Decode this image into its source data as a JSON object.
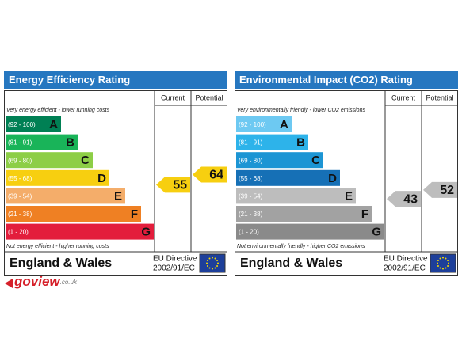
{
  "panels": [
    {
      "title": "Energy Efficiency Rating",
      "column_headers": [
        "Current",
        "Potential"
      ],
      "top_note": "Very energy efficient - lower running costs",
      "bottom_note": "Not energy efficient - higher running costs",
      "bands": [
        {
          "range": "(92 - 100)",
          "letter": "A",
          "color": "#008054"
        },
        {
          "range": "(81 - 91)",
          "letter": "B",
          "color": "#19b459"
        },
        {
          "range": "(69 - 80)",
          "letter": "C",
          "color": "#8dce46"
        },
        {
          "range": "(55 - 68)",
          "letter": "D",
          "color": "#f7cf10"
        },
        {
          "range": "(39 - 54)",
          "letter": "E",
          "color": "#f4ad6a"
        },
        {
          "range": "(21 - 38)",
          "letter": "F",
          "color": "#ef8023"
        },
        {
          "range": "(1 - 20)",
          "letter": "G",
          "color": "#e31d3c"
        }
      ],
      "current": 55,
      "potential": 64,
      "region": "England & Wales",
      "directive": [
        "EU Directive",
        "2002/91/EC"
      ]
    },
    {
      "title": "Environmental Impact (CO2) Rating",
      "column_headers": [
        "Current",
        "Potential"
      ],
      "top_note": "Very environmentally friendly - lower CO2 emissions",
      "bottom_note": "Not environmentally friendly - higher CO2 emissions",
      "bands": [
        {
          "range": "(92 - 100)",
          "letter": "A",
          "color": "#6dc9f2"
        },
        {
          "range": "(81 - 91)",
          "letter": "B",
          "color": "#2db3ea"
        },
        {
          "range": "(69 - 80)",
          "letter": "C",
          "color": "#1c95d4"
        },
        {
          "range": "(55 - 68)",
          "letter": "D",
          "color": "#1670b6"
        },
        {
          "range": "(39 - 54)",
          "letter": "E",
          "color": "#bdbdbd"
        },
        {
          "range": "(21 - 38)",
          "letter": "F",
          "color": "#a2a2a2"
        },
        {
          "range": "(1 - 20)",
          "letter": "G",
          "color": "#8a8a8a"
        }
      ],
      "current": 43,
      "potential": 52,
      "region": "England & Wales",
      "directive": [
        "EU Directive",
        "2002/91/EC"
      ]
    }
  ],
  "logo": {
    "name": "goview",
    "suffix": ".co.uk"
  }
}
